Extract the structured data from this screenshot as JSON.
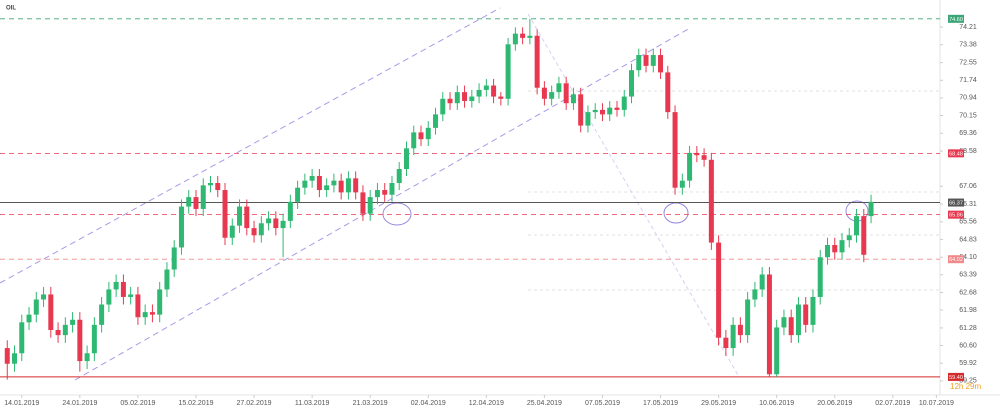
{
  "chart_data": {
    "type": "candlestick",
    "title": "OIL",
    "countdown": "12h 29m",
    "up_color": "#2eb872",
    "down_color": "#e8384f",
    "log_scale": true,
    "ylim": [
      58.72,
      75.02
    ],
    "xlim": [
      -3,
      126.5
    ],
    "yticks": [
      74.21,
      73.38,
      72.55,
      71.74,
      70.94,
      70.15,
      69.36,
      68.58,
      67.06,
      66.31,
      65.56,
      64.83,
      {
        "value": 64.1,
        "label": "64.10"
      },
      63.39,
      62.68,
      61.98,
      61.28,
      {
        "value": 60.6,
        "label": "60.60"
      },
      59.92,
      59.25
    ],
    "xticks": [
      {
        "value": 0,
        "label": "14.01.2019"
      },
      {
        "value": 8,
        "label": "24.01.2019"
      },
      {
        "value": 16,
        "label": "05.02.2019"
      },
      {
        "value": 24,
        "label": "15.02.2019"
      },
      {
        "value": 32,
        "label": "27.02.2019"
      },
      {
        "value": 40,
        "label": "11.03.2019"
      },
      {
        "value": 48,
        "label": "21.03.2019"
      },
      {
        "value": 56,
        "label": "02.04.2019"
      },
      {
        "value": 64,
        "label": "12.04.2019"
      },
      {
        "value": 72,
        "label": "25.04.2019"
      },
      {
        "value": 80,
        "label": "07.05.2019"
      },
      {
        "value": 88,
        "label": "17.05.2019"
      },
      {
        "value": 96,
        "label": "29.05.2019"
      },
      {
        "value": 104,
        "label": "10.06.2019"
      },
      {
        "value": 112,
        "label": "20.06.2019"
      },
      {
        "value": 120,
        "label": "02.07.2019"
      },
      {
        "value": 126,
        "label": "10.07.2019"
      }
    ],
    "levels": [
      {
        "value": 74.6,
        "label": "74.60",
        "color": "#3aa675",
        "style": "dashed"
      },
      {
        "value": 68.48,
        "label": "68.48",
        "color": "#e8384f",
        "style": "dashed"
      },
      {
        "value": 65.86,
        "label": "65.86",
        "color": "#e8384f",
        "style": "dashed"
      },
      {
        "value": 64.02,
        "label": "64.02",
        "color": "#f08a8a",
        "style": "dashed"
      },
      {
        "value": 59.4,
        "label": "59.40",
        "color": "#d42a2a",
        "style": "solid"
      },
      {
        "value": 66.37,
        "label": "66.37",
        "color": "#555555",
        "style": "solid"
      }
    ],
    "x": [
      -2,
      -1,
      0,
      1,
      2,
      3,
      4,
      5,
      6,
      7,
      8,
      9,
      10,
      11,
      12,
      13,
      14,
      15,
      16,
      17,
      18,
      19,
      20,
      21,
      22,
      23,
      24,
      25,
      26,
      27,
      28,
      29,
      30,
      31,
      32,
      33,
      34,
      35,
      36,
      37,
      38,
      39,
      40,
      41,
      42,
      43,
      44,
      45,
      46,
      47,
      48,
      49,
      50,
      51,
      52,
      53,
      54,
      55,
      56,
      57,
      58,
      59,
      60,
      61,
      62,
      63,
      64,
      65,
      66,
      67,
      68,
      69,
      70,
      71,
      72,
      73,
      74,
      75,
      76,
      77,
      78,
      79,
      80,
      81,
      82,
      83,
      84,
      85,
      86,
      87,
      88,
      89,
      90,
      91,
      92,
      93,
      94,
      95,
      96,
      97,
      98,
      99,
      100,
      101,
      102,
      103,
      104,
      105,
      106,
      107,
      108,
      109,
      110,
      111,
      112,
      113,
      114,
      115,
      116,
      117
    ],
    "open": [
      60.5,
      59.9,
      60.3,
      61.5,
      61.8,
      62.4,
      62.6,
      61.2,
      61.0,
      61.4,
      61.6,
      60.0,
      60.3,
      61.4,
      62.2,
      62.8,
      63.1,
      62.5,
      62.6,
      61.7,
      61.9,
      61.8,
      62.8,
      63.6,
      64.5,
      66.2,
      66.6,
      66.1,
      67.1,
      67.2,
      66.9,
      64.9,
      65.4,
      66.2,
      65.3,
      65.0,
      65.5,
      65.7,
      65.3,
      65.6,
      66.4,
      67.0,
      67.3,
      67.5,
      66.9,
      67.1,
      67.3,
      66.8,
      67.4,
      66.8,
      65.9,
      66.6,
      66.9,
      66.7,
      67.2,
      67.8,
      68.7,
      69.4,
      69.1,
      69.6,
      70.2,
      70.9,
      70.7,
      71.2,
      70.8,
      71.0,
      71.3,
      71.5,
      71.0,
      70.9,
      73.4,
      73.9,
      73.7,
      73.8,
      71.4,
      70.9,
      71.2,
      71.6,
      70.7,
      71.1,
      69.7,
      70.3,
      70.4,
      70.2,
      70.5,
      70.4,
      71.0,
      72.2,
      72.9,
      72.4,
      72.9,
      72.1,
      70.3,
      67.0,
      67.3,
      68.5,
      68.4,
      68.2,
      64.7,
      60.9,
      60.5,
      61.4,
      61.0,
      62.4,
      62.8,
      63.4,
      59.5,
      61.3,
      61.7,
      61.0,
      62.2,
      61.4,
      62.5,
      64.1,
      64.6,
      64.3,
      64.8,
      65.0,
      65.8,
      65.8
    ],
    "high": [
      60.8,
      60.6,
      61.8,
      62.1,
      62.7,
      62.9,
      62.9,
      61.5,
      61.7,
      61.9,
      61.9,
      60.6,
      61.7,
      62.5,
      63.1,
      63.4,
      63.4,
      62.9,
      62.9,
      62.2,
      62.2,
      63.1,
      63.9,
      64.8,
      66.5,
      66.9,
      66.9,
      67.4,
      67.5,
      67.5,
      67.2,
      65.7,
      66.5,
      66.5,
      65.6,
      65.8,
      66.0,
      66.0,
      65.9,
      66.7,
      67.3,
      67.6,
      67.8,
      67.8,
      67.4,
      67.6,
      67.6,
      67.7,
      67.7,
      67.1,
      66.9,
      67.2,
      67.2,
      67.5,
      68.1,
      69.0,
      69.7,
      69.7,
      69.9,
      70.5,
      71.2,
      71.2,
      71.5,
      71.5,
      71.3,
      71.6,
      71.8,
      71.8,
      71.2,
      73.7,
      74.2,
      74.2,
      74.6,
      74.1,
      71.7,
      71.5,
      71.9,
      71.9,
      71.4,
      71.4,
      70.6,
      70.7,
      70.7,
      70.8,
      70.8,
      71.3,
      72.5,
      73.2,
      73.2,
      73.2,
      73.2,
      72.4,
      70.6,
      67.6,
      68.8,
      68.8,
      68.7,
      68.5,
      65.0,
      61.2,
      61.7,
      61.7,
      62.7,
      63.1,
      63.7,
      63.7,
      61.6,
      62.0,
      62.0,
      62.5,
      62.5,
      62.8,
      64.4,
      64.9,
      64.9,
      65.1,
      65.3,
      66.1,
      66.1,
      66.7
    ],
    "low": [
      59.3,
      59.6,
      60.0,
      61.2,
      61.5,
      62.1,
      60.9,
      60.7,
      60.7,
      61.1,
      59.6,
      59.7,
      60.0,
      61.1,
      61.9,
      62.5,
      62.2,
      62.2,
      61.4,
      61.4,
      61.5,
      61.5,
      62.5,
      63.3,
      64.2,
      65.9,
      65.8,
      65.8,
      66.8,
      66.6,
      64.6,
      64.6,
      65.1,
      65.0,
      64.7,
      64.7,
      65.2,
      65.0,
      64.1,
      65.3,
      66.1,
      66.7,
      67.0,
      66.6,
      66.6,
      66.8,
      66.5,
      66.5,
      66.5,
      65.6,
      65.6,
      66.3,
      66.4,
      66.4,
      66.9,
      67.5,
      68.4,
      68.8,
      68.8,
      69.3,
      69.9,
      70.4,
      70.4,
      70.5,
      70.5,
      70.7,
      71.0,
      70.7,
      70.6,
      70.6,
      73.1,
      73.4,
      73.4,
      71.1,
      70.6,
      70.6,
      70.9,
      70.4,
      70.4,
      69.4,
      69.4,
      70.0,
      69.9,
      69.9,
      70.1,
      70.1,
      70.7,
      71.9,
      72.1,
      72.1,
      71.8,
      70.0,
      66.7,
      66.7,
      67.0,
      68.1,
      67.9,
      64.4,
      60.6,
      60.2,
      60.2,
      60.7,
      60.7,
      62.1,
      62.5,
      59.4,
      59.4,
      61.0,
      60.7,
      60.7,
      61.1,
      61.1,
      62.2,
      63.8,
      64.0,
      64.0,
      64.5,
      64.7,
      63.9,
      65.5
    ],
    "close": [
      59.9,
      60.3,
      61.5,
      61.8,
      62.4,
      62.6,
      61.2,
      61.0,
      61.4,
      61.6,
      60.0,
      60.3,
      61.4,
      62.2,
      62.8,
      63.1,
      62.5,
      62.6,
      61.7,
      61.9,
      61.8,
      62.8,
      63.6,
      64.5,
      66.2,
      66.6,
      66.1,
      67.1,
      67.2,
      66.9,
      64.9,
      65.4,
      66.2,
      65.3,
      65.0,
      65.5,
      65.7,
      65.3,
      65.6,
      66.4,
      67.0,
      67.3,
      67.5,
      66.9,
      67.1,
      67.3,
      66.8,
      67.4,
      66.8,
      65.9,
      66.6,
      66.9,
      66.7,
      67.2,
      67.8,
      68.7,
      69.4,
      69.1,
      69.6,
      70.2,
      70.9,
      70.7,
      71.2,
      70.8,
      71.0,
      71.3,
      71.5,
      71.0,
      70.9,
      73.4,
      73.9,
      73.7,
      73.8,
      71.4,
      70.9,
      71.2,
      71.6,
      70.7,
      71.1,
      69.7,
      70.3,
      70.4,
      70.2,
      70.5,
      70.4,
      71.0,
      72.2,
      72.9,
      72.4,
      72.9,
      72.1,
      70.3,
      67.0,
      67.3,
      68.5,
      68.4,
      68.2,
      64.7,
      60.9,
      60.5,
      61.4,
      61.0,
      62.4,
      62.8,
      63.4,
      59.5,
      61.3,
      61.7,
      61.0,
      62.2,
      61.4,
      62.5,
      64.1,
      64.6,
      64.3,
      64.8,
      65.0,
      65.8,
      64.2,
      66.4
    ]
  }
}
